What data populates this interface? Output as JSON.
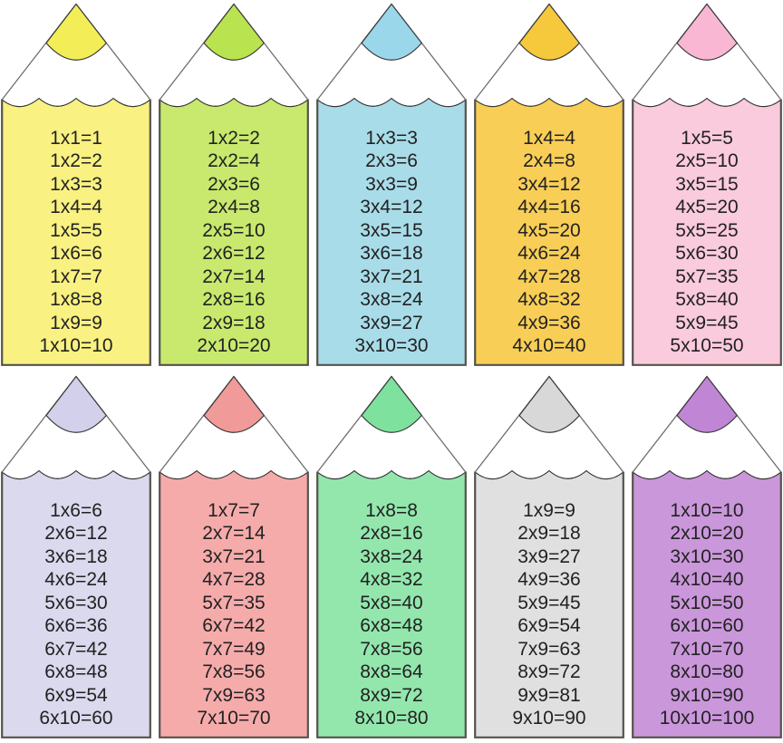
{
  "style": {
    "background": "#ffffff",
    "text_color": "#222222",
    "body_outline_color": "#55524b",
    "wave_line_color": "#2a2a2a",
    "tip_line_color": "#3c3c3c",
    "side_line_color": "#6e6e6e"
  },
  "pencils": [
    {
      "id": "times-table-1",
      "tip_color": "#F3EE58",
      "body_color": "#F9F181",
      "facts": [
        "1x1=1",
        "1x2=2",
        "1x3=3",
        "1x4=4",
        "1x5=5",
        "1x6=6",
        "1x7=7",
        "1x8=8",
        "1x9=9",
        "1x10=10"
      ]
    },
    {
      "id": "times-table-2",
      "tip_color": "#B9E44F",
      "body_color": "#C8E96E",
      "facts": [
        "1x2=2",
        "2x2=4",
        "2x3=6",
        "2x4=8",
        "2x5=10",
        "2x6=12",
        "2x7=14",
        "2x8=16",
        "2x9=18",
        "2x10=20"
      ]
    },
    {
      "id": "times-table-3",
      "tip_color": "#9BD7EA",
      "body_color": "#A9DCE9",
      "facts": [
        "1x3=3",
        "2x3=6",
        "3x3=9",
        "3x4=12",
        "3x5=15",
        "3x6=18",
        "3x7=21",
        "3x8=24",
        "3x9=27",
        "3x10=30"
      ]
    },
    {
      "id": "times-table-4",
      "tip_color": "#F6C83B",
      "body_color": "#F8CE56",
      "facts": [
        "1x4=4",
        "2x4=8",
        "3x4=12",
        "4x4=16",
        "4x5=20",
        "4x6=24",
        "4x7=28",
        "4x8=32",
        "4x9=36",
        "4x10=40"
      ]
    },
    {
      "id": "times-table-5",
      "tip_color": "#F9B7D3",
      "body_color": "#FACADD",
      "facts": [
        "1x5=5",
        "2x5=10",
        "3x5=15",
        "4x5=20",
        "5x5=25",
        "5x6=30",
        "5x7=35",
        "5x8=40",
        "5x9=45",
        "5x10=50"
      ]
    },
    {
      "id": "times-table-6",
      "tip_color": "#D2D0EA",
      "body_color": "#DAD9EE",
      "facts": [
        "1x6=6",
        "2x6=12",
        "3x6=18",
        "4x6=24",
        "5x6=30",
        "6x6=36",
        "6x7=42",
        "6x8=48",
        "6x9=54",
        "6x10=60"
      ]
    },
    {
      "id": "times-table-7",
      "tip_color": "#F19A9A",
      "body_color": "#F6ABAB",
      "facts": [
        "1x7=7",
        "2x7=14",
        "3x7=21",
        "4x7=28",
        "5x7=35",
        "6x7=42",
        "7x7=49",
        "7x8=56",
        "7x9=63",
        "7x10=70"
      ]
    },
    {
      "id": "times-table-8",
      "tip_color": "#7EE29E",
      "body_color": "#93E7AD",
      "facts": [
        "1x8=8",
        "2x8=16",
        "3x8=24",
        "4x8=32",
        "5x8=40",
        "6x8=48",
        "7x8=56",
        "8x8=64",
        "8x9=72",
        "8x10=80"
      ]
    },
    {
      "id": "times-table-9",
      "tip_color": "#D8D8D8",
      "body_color": "#E0E0E0",
      "facts": [
        "1x9=9",
        "2x9=18",
        "3x9=27",
        "4x9=36",
        "5x9=45",
        "6x9=54",
        "7x9=63",
        "8x9=72",
        "9x9=81",
        "9x10=90"
      ]
    },
    {
      "id": "times-table-10",
      "tip_color": "#C185D6",
      "body_color": "#CA97DB",
      "facts": [
        "1x10=10",
        "2x10=20",
        "3x10=30",
        "4x10=40",
        "5x10=50",
        "6x10=60",
        "7x10=70",
        "8x10=80",
        "9x10=90",
        "10x10=100"
      ]
    }
  ]
}
